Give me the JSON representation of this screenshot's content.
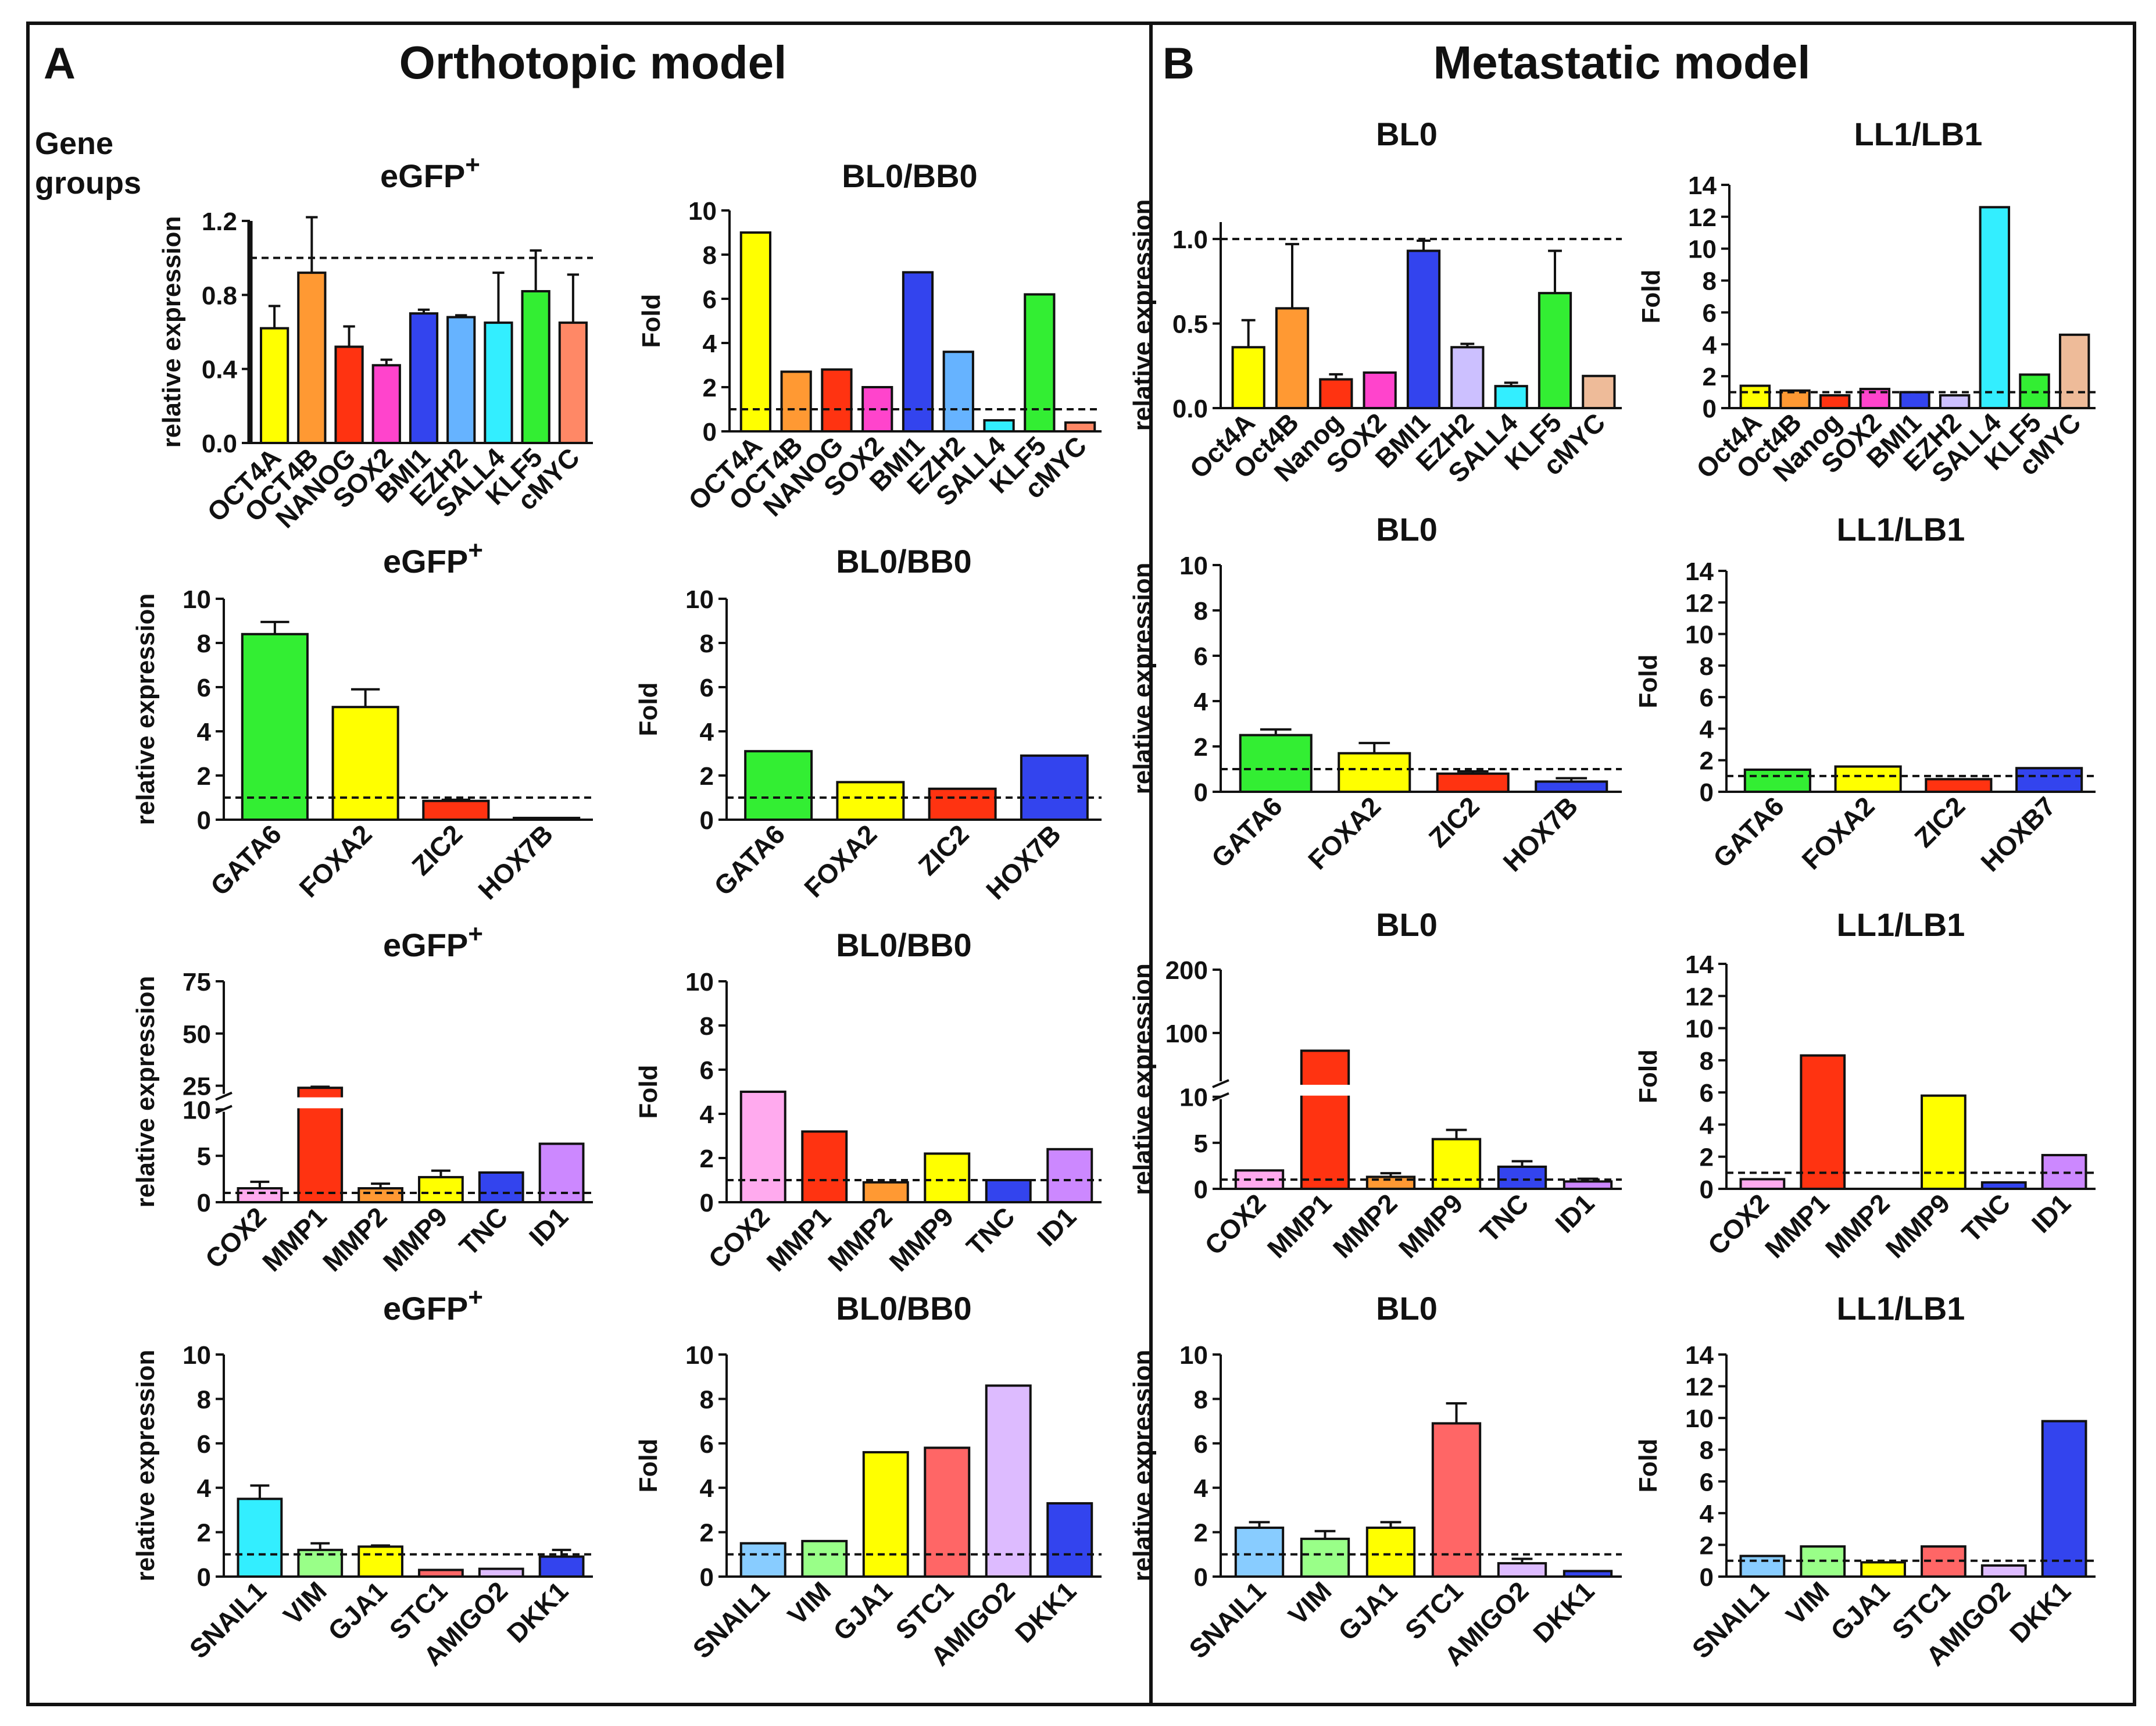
{
  "panels": [
    {
      "letter": "A",
      "title": "Orthotopic model",
      "side_label": "Gene groups"
    },
    {
      "letter": "B",
      "title": "Metastatic model"
    }
  ],
  "colors": {
    "yellow": "#ffff00",
    "orange": "#ff9933",
    "red": "#ff3311",
    "pink": "#ff44cc",
    "blue": "#3344ee",
    "lightblue": "#66b3ff",
    "cyan": "#33eeff",
    "green": "#33ee33",
    "salmon": "#ff8866",
    "lightviolet": "#ccc0ff",
    "peach": "#eebb99",
    "violet": "#cc88ff",
    "lightpink": "#ffaaee",
    "lightgreen": "#99ff88",
    "coral": "#ff6666",
    "lavender": "#ddbbff",
    "skyblue": "#88ccff"
  },
  "chart_data": [
    {
      "id": "a1",
      "type": "bar",
      "title": "eGFP",
      "title_sup": "+",
      "ylabel": "relative expression",
      "categories": [
        "OCT4A",
        "OCT4B",
        "NANOG",
        "SOX2",
        "BMI1",
        "EZH2",
        "SALL4",
        "KLF5",
        "cMYC"
      ],
      "values": [
        0.62,
        0.92,
        0.52,
        0.42,
        0.7,
        0.68,
        0.65,
        0.82,
        0.65
      ],
      "errors": [
        0.12,
        0.3,
        0.11,
        0.03,
        0.02,
        0.01,
        0.27,
        0.22,
        0.26
      ],
      "colors": [
        "yellow",
        "orange",
        "red",
        "pink",
        "blue",
        "lightblue",
        "cyan",
        "green",
        "salmon"
      ],
      "ylim": [
        0,
        1.2
      ],
      "yticks": [
        0.0,
        0.4,
        0.8,
        1.2
      ],
      "ytick_labels": [
        "0.0",
        "0.4",
        "0.8",
        "1.2"
      ],
      "ref_line": 1.0
    },
    {
      "id": "a2",
      "type": "bar",
      "title": "BL0/BB0",
      "ylabel": "Fold",
      "categories": [
        "OCT4A",
        "OCT4B",
        "NANOG",
        "SOX2",
        "BMI1",
        "EZH2",
        "SALL4",
        "KLF5",
        "cMYC"
      ],
      "values": [
        9.0,
        2.7,
        2.8,
        2.0,
        7.2,
        3.6,
        0.5,
        6.2,
        0.4
      ],
      "colors": [
        "yellow",
        "orange",
        "red",
        "pink",
        "blue",
        "lightblue",
        "cyan",
        "green",
        "salmon"
      ],
      "ylim": [
        0,
        10
      ],
      "yticks": [
        0,
        2,
        4,
        6,
        8,
        10
      ],
      "ytick_labels": [
        "0",
        "2",
        "4",
        "6",
        "8",
        "10"
      ],
      "ref_line": 1.0
    },
    {
      "id": "b1",
      "type": "bar",
      "title": "BL0",
      "ylabel": "relative expression",
      "categories": [
        "Oct4A",
        "Oct4B",
        "Nanog",
        "SOX2",
        "BMI1",
        "EZH2",
        "SALL4",
        "KLF5",
        "cMYC"
      ],
      "values": [
        0.36,
        0.59,
        0.17,
        0.21,
        0.93,
        0.36,
        0.13,
        0.68,
        0.19
      ],
      "errors": [
        0.16,
        0.38,
        0.03,
        0.0,
        0.06,
        0.02,
        0.02,
        0.25,
        0.0
      ],
      "colors": [
        "yellow",
        "orange",
        "red",
        "pink",
        "blue",
        "lightviolet",
        "cyan",
        "green",
        "peach"
      ],
      "ylim": [
        0,
        1.1
      ],
      "yticks": [
        0.0,
        0.5,
        1.0
      ],
      "ytick_labels": [
        "0.0",
        "0.5",
        "1.0"
      ],
      "ref_line": 1.0
    },
    {
      "id": "b2",
      "type": "bar",
      "title": "LL1/LB1",
      "ylabel": "Fold",
      "categories": [
        "Oct4A",
        "Oct4B",
        "Nanog",
        "SOX2",
        "BMI1",
        "EZH2",
        "SALL4",
        "KLF5",
        "cMYC"
      ],
      "values": [
        1.4,
        1.1,
        0.8,
        1.2,
        1.0,
        0.8,
        12.6,
        2.1,
        4.6
      ],
      "colors": [
        "yellow",
        "orange",
        "red",
        "pink",
        "blue",
        "lightviolet",
        "cyan",
        "green",
        "peach"
      ],
      "ylim": [
        0,
        14
      ],
      "yticks": [
        0,
        2,
        4,
        6,
        8,
        10,
        12,
        14
      ],
      "ytick_labels": [
        "0",
        "2",
        "4",
        "6",
        "8",
        "10",
        "12",
        "14"
      ],
      "ref_line": 1.0
    },
    {
      "id": "a3",
      "type": "bar",
      "title": "eGFP",
      "title_sup": "+",
      "ylabel": "relative expression",
      "categories": [
        "GATA6",
        "FOXA2",
        "ZIC2",
        "HOX7B"
      ],
      "values": [
        8.4,
        5.1,
        0.85,
        0.08
      ],
      "errors": [
        0.55,
        0.8,
        0.05,
        0.0
      ],
      "colors": [
        "green",
        "yellow",
        "red",
        "blue"
      ],
      "ylim": [
        0,
        10
      ],
      "yticks": [
        0,
        2,
        4,
        6,
        8,
        10
      ],
      "ytick_labels": [
        "0",
        "2",
        "4",
        "6",
        "8",
        "10"
      ],
      "ref_line": 1.0
    },
    {
      "id": "a4",
      "type": "bar",
      "title": "BL0/BB0",
      "ylabel": "Fold",
      "categories": [
        "GATA6",
        "FOXA2",
        "ZIC2",
        "HOX7B"
      ],
      "values": [
        3.1,
        1.7,
        1.4,
        2.9
      ],
      "colors": [
        "green",
        "yellow",
        "red",
        "blue"
      ],
      "ylim": [
        0,
        10
      ],
      "yticks": [
        0,
        2,
        4,
        6,
        8,
        10
      ],
      "ytick_labels": [
        "0",
        "2",
        "4",
        "6",
        "8",
        "10"
      ],
      "ref_line": 1.0
    },
    {
      "id": "b3",
      "type": "bar",
      "title": "BL0",
      "ylabel": "relative expression",
      "categories": [
        "GATA6",
        "FOXA2",
        "ZIC2",
        "HOX7B"
      ],
      "values": [
        2.5,
        1.7,
        0.8,
        0.45
      ],
      "errors": [
        0.25,
        0.45,
        0.1,
        0.15
      ],
      "colors": [
        "green",
        "yellow",
        "red",
        "blue"
      ],
      "ylim": [
        0,
        10
      ],
      "yticks": [
        0,
        2,
        4,
        6,
        8,
        10
      ],
      "ytick_labels": [
        "0",
        "2",
        "4",
        "6",
        "8",
        "10"
      ],
      "ref_line": 1.0
    },
    {
      "id": "b4",
      "type": "bar",
      "title": "LL1/LB1",
      "ylabel": "Fold",
      "categories": [
        "GATA6",
        "FOXA2",
        "ZIC2",
        "HOXB7"
      ],
      "values": [
        1.4,
        1.6,
        0.8,
        1.5
      ],
      "colors": [
        "green",
        "yellow",
        "red",
        "blue"
      ],
      "ylim": [
        0,
        14
      ],
      "yticks": [
        0,
        2,
        4,
        6,
        8,
        10,
        12,
        14
      ],
      "ytick_labels": [
        "0",
        "2",
        "4",
        "6",
        "8",
        "10",
        "12",
        "14"
      ],
      "ref_line": 1.0
    },
    {
      "id": "a5",
      "type": "bar",
      "title": "eGFP",
      "title_sup": "+",
      "ylabel": "relative expression",
      "categories": [
        "COX2",
        "MMP1",
        "MMP2",
        "MMP9",
        "TNC",
        "ID1"
      ],
      "values": [
        1.5,
        24,
        1.5,
        2.7,
        3.2,
        6.3
      ],
      "errors": [
        0.7,
        0.5,
        0.5,
        0.7,
        0.0,
        0.0
      ],
      "colors": [
        "lightpink",
        "red",
        "orange",
        "yellow",
        "blue",
        "violet"
      ],
      "broken_axis": true,
      "ylim": [
        0,
        75
      ],
      "axis_break": [
        10,
        20
      ],
      "yticks": [
        0,
        5,
        10,
        25,
        50,
        75
      ],
      "ytick_labels": [
        "0",
        "5",
        "10",
        "25",
        "50",
        "75"
      ],
      "ref_line": 1.0
    },
    {
      "id": "a6",
      "type": "bar",
      "title": "BL0/BB0",
      "ylabel": "Fold",
      "categories": [
        "COX2",
        "MMP1",
        "MMP2",
        "MMP9",
        "TNC",
        "ID1"
      ],
      "values": [
        5.0,
        3.2,
        0.9,
        2.2,
        1.0,
        2.4
      ],
      "colors": [
        "lightpink",
        "red",
        "orange",
        "yellow",
        "blue",
        "violet"
      ],
      "ylim": [
        0,
        10
      ],
      "yticks": [
        0,
        2,
        4,
        6,
        8,
        10
      ],
      "ytick_labels": [
        "0",
        "2",
        "4",
        "6",
        "8",
        "10"
      ],
      "ref_line": 1.0
    },
    {
      "id": "b5",
      "type": "bar",
      "title": "BL0",
      "ylabel": "relative expression",
      "categories": [
        "COX2",
        "MMP1",
        "MMP2",
        "MMP9",
        "TNC",
        "ID1"
      ],
      "values": [
        2.0,
        72,
        1.3,
        5.4,
        2.4,
        0.8
      ],
      "errors": [
        0.0,
        0.0,
        0.4,
        1.0,
        0.6,
        0.3
      ],
      "colors": [
        "lightpink",
        "red",
        "orange",
        "yellow",
        "blue",
        "violet"
      ],
      "broken_axis": true,
      "ylim": [
        0,
        200
      ],
      "axis_break": [
        10,
        20
      ],
      "yticks": [
        0,
        5,
        10,
        100,
        200
      ],
      "ytick_labels": [
        "0",
        "5",
        "10",
        "100",
        "200"
      ],
      "ref_line": 1.0
    },
    {
      "id": "b6",
      "type": "bar",
      "title": "LL1/LB1",
      "ylabel": "Fold",
      "categories": [
        "COX2",
        "MMP1",
        "MMP2",
        "MMP9",
        "TNC",
        "ID1"
      ],
      "values": [
        0.6,
        8.3,
        0.0,
        5.8,
        0.4,
        2.1
      ],
      "colors": [
        "lightpink",
        "red",
        "orange",
        "yellow",
        "blue",
        "violet"
      ],
      "ylim": [
        0,
        14
      ],
      "yticks": [
        0,
        2,
        4,
        6,
        8,
        10,
        12,
        14
      ],
      "ytick_labels": [
        "0",
        "2",
        "4",
        "6",
        "8",
        "10",
        "12",
        "14"
      ],
      "ref_line": 1.0
    },
    {
      "id": "a7",
      "type": "bar",
      "title": "eGFP",
      "title_sup": "+",
      "ylabel": "relative expression",
      "categories": [
        "SNAIL1",
        "VIM",
        "GJA1",
        "STC1",
        "AMIGO2",
        "DKK1"
      ],
      "values": [
        3.5,
        1.2,
        1.35,
        0.3,
        0.35,
        0.9
      ],
      "errors": [
        0.6,
        0.3,
        0.05,
        0.0,
        0.0,
        0.3
      ],
      "colors": [
        "cyan",
        "lightgreen",
        "yellow",
        "coral",
        "lavender",
        "blue"
      ],
      "ylim": [
        0,
        10
      ],
      "yticks": [
        0,
        2,
        4,
        6,
        8,
        10
      ],
      "ytick_labels": [
        "0",
        "2",
        "4",
        "6",
        "8",
        "10"
      ],
      "ref_line": 1.0
    },
    {
      "id": "a8",
      "type": "bar",
      "title": "BL0/BB0",
      "ylabel": "Fold",
      "categories": [
        "SNAIL1",
        "VIM",
        "GJA1",
        "STC1",
        "AMIGO2",
        "DKK1"
      ],
      "values": [
        1.5,
        1.6,
        5.6,
        5.8,
        8.6,
        3.3
      ],
      "colors": [
        "skyblue",
        "lightgreen",
        "yellow",
        "coral",
        "lavender",
        "blue"
      ],
      "ylim": [
        0,
        10
      ],
      "yticks": [
        0,
        2,
        4,
        6,
        8,
        10
      ],
      "ytick_labels": [
        "0",
        "2",
        "4",
        "6",
        "8",
        "10"
      ],
      "ref_line": 1.0
    },
    {
      "id": "b7",
      "type": "bar",
      "title": "BL0",
      "ylabel": "relative expression",
      "categories": [
        "SNAIL1",
        "VIM",
        "GJA1",
        "STC1",
        "AMIGO2",
        "DKK1"
      ],
      "values": [
        2.2,
        1.7,
        2.2,
        6.9,
        0.6,
        0.25
      ],
      "errors": [
        0.25,
        0.35,
        0.25,
        0.9,
        0.2,
        0.0
      ],
      "colors": [
        "skyblue",
        "lightgreen",
        "yellow",
        "coral",
        "lavender",
        "blue"
      ],
      "ylim": [
        0,
        10
      ],
      "yticks": [
        0,
        2,
        4,
        6,
        8,
        10
      ],
      "ytick_labels": [
        "0",
        "2",
        "4",
        "6",
        "8",
        "10"
      ],
      "ref_line": 1.0
    },
    {
      "id": "b8",
      "type": "bar",
      "title": "LL1/LB1",
      "ylabel": "Fold",
      "categories": [
        "SNAIL1",
        "VIM",
        "GJA1",
        "STC1",
        "AMIGO2",
        "DKK1"
      ],
      "values": [
        1.3,
        1.9,
        0.9,
        1.9,
        0.7,
        9.8
      ],
      "colors": [
        "skyblue",
        "lightgreen",
        "yellow",
        "coral",
        "lavender",
        "blue"
      ],
      "ylim": [
        0,
        14
      ],
      "yticks": [
        0,
        2,
        4,
        6,
        8,
        10,
        12,
        14
      ],
      "ytick_labels": [
        "0",
        "2",
        "4",
        "6",
        "8",
        "10",
        "12",
        "14"
      ],
      "ref_line": 1.0
    }
  ]
}
